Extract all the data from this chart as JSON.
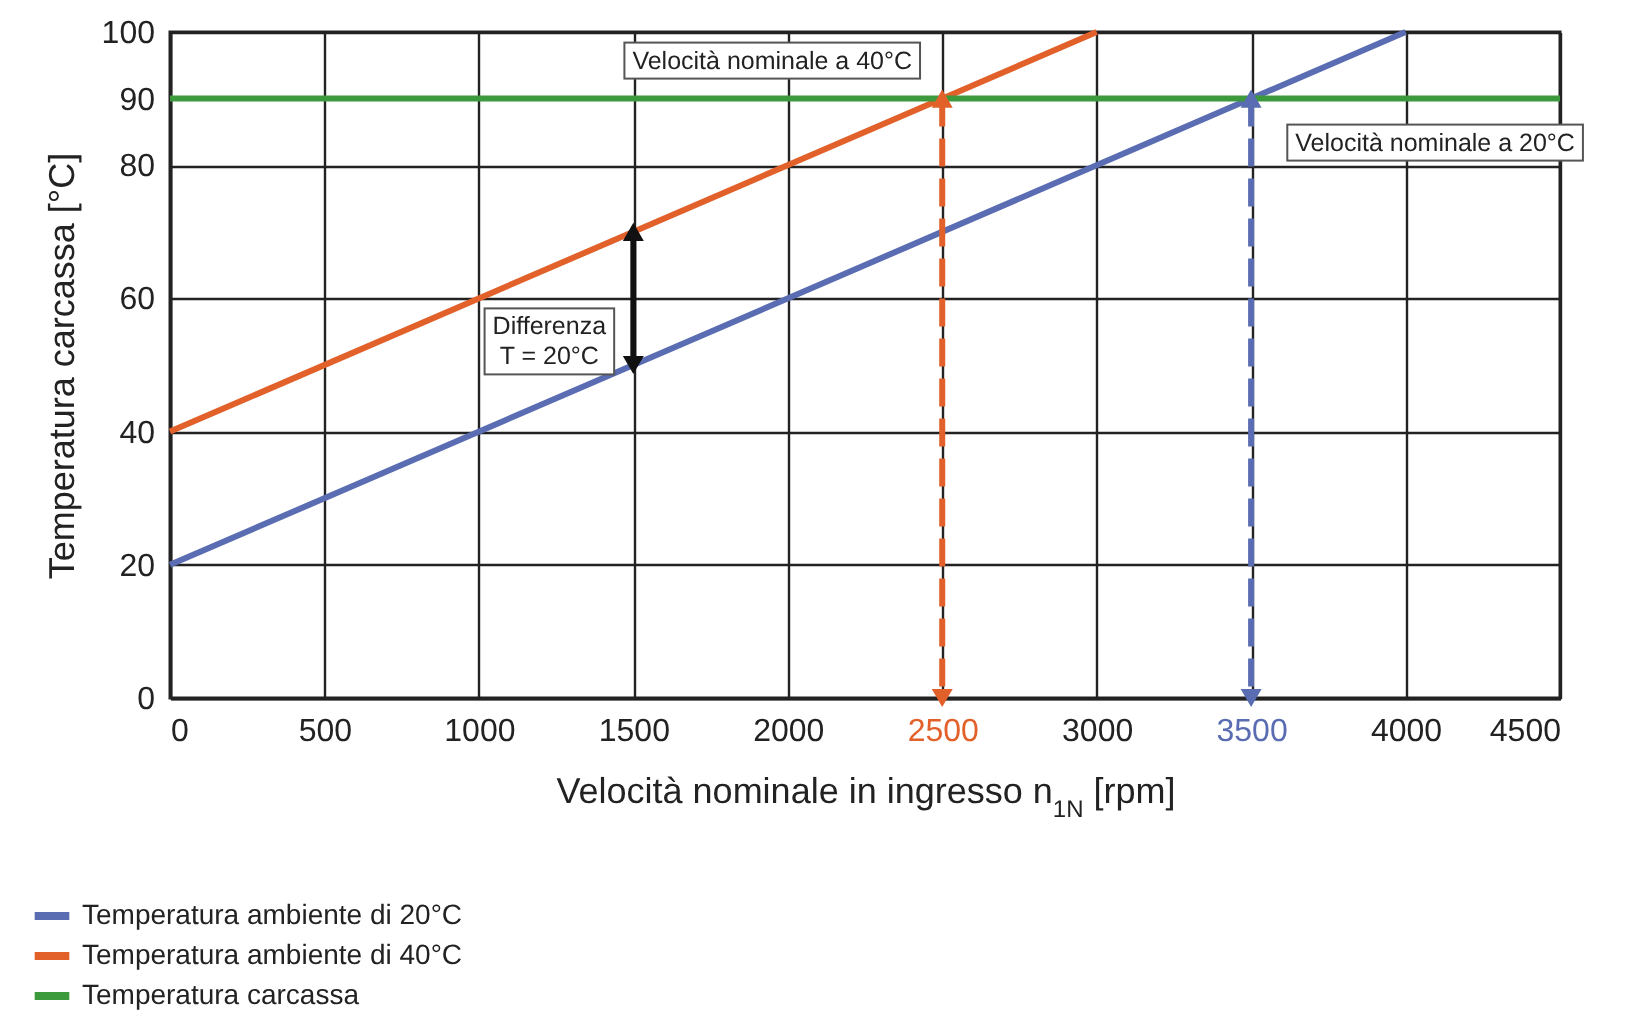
{
  "chart_data": {
    "type": "line",
    "xlabel": "Velocità nominale in ingresso n$_{1N}$ [rpm]",
    "ylabel": "Temperatura carcassa [°C]",
    "xlim": [
      0,
      4500
    ],
    "xticks": [
      0,
      500,
      1000,
      1500,
      2000,
      2500,
      3000,
      3500,
      4000,
      4500
    ],
    "ylim": [
      0,
      100
    ],
    "yticks": [
      0,
      20,
      40,
      60,
      80,
      90,
      100
    ],
    "grid": true,
    "legend": "bottom left",
    "series": [
      {
        "name": "Temperatura ambiente di 20°C",
        "color": "#5a6cb2",
        "x": [
          0,
          4000
        ],
        "values": [
          20,
          100
        ]
      },
      {
        "name": "Temperatura ambiente di 40°C",
        "color": "#e2612a",
        "x": [
          0,
          3000
        ],
        "values": [
          40,
          100
        ]
      },
      {
        "name": "Temperatura carcassa",
        "color": "#3c9a3c",
        "x": [
          0,
          4500
        ],
        "values": [
          90,
          90
        ]
      },
      {
        "color": "#e2612a",
        "x": [
          2500,
          2500
        ],
        "values": [
          90,
          0
        ],
        "line_style": "dashed",
        "marker": "triangle"
      },
      {
        "color": "#5a6cb2",
        "x": [
          3500,
          3500
        ],
        "values": [
          90,
          0
        ],
        "line_style": "dashed",
        "marker": "triangle"
      },
      {
        "color": "#111111",
        "x": [
          1500,
          1500
        ],
        "values": [
          50,
          70
        ],
        "marker": "triangle"
      }
    ],
    "annotations": [
      {
        "text": "Velocità nominale a 40°C",
        "x": 2500,
        "y": 90
      },
      {
        "text": "Velocità nominale a 20°C",
        "x": 3500,
        "y": 90
      },
      {
        "text": "Differenza\nT = 20°C",
        "x": 1500,
        "y": 60
      }
    ]
  }
}
